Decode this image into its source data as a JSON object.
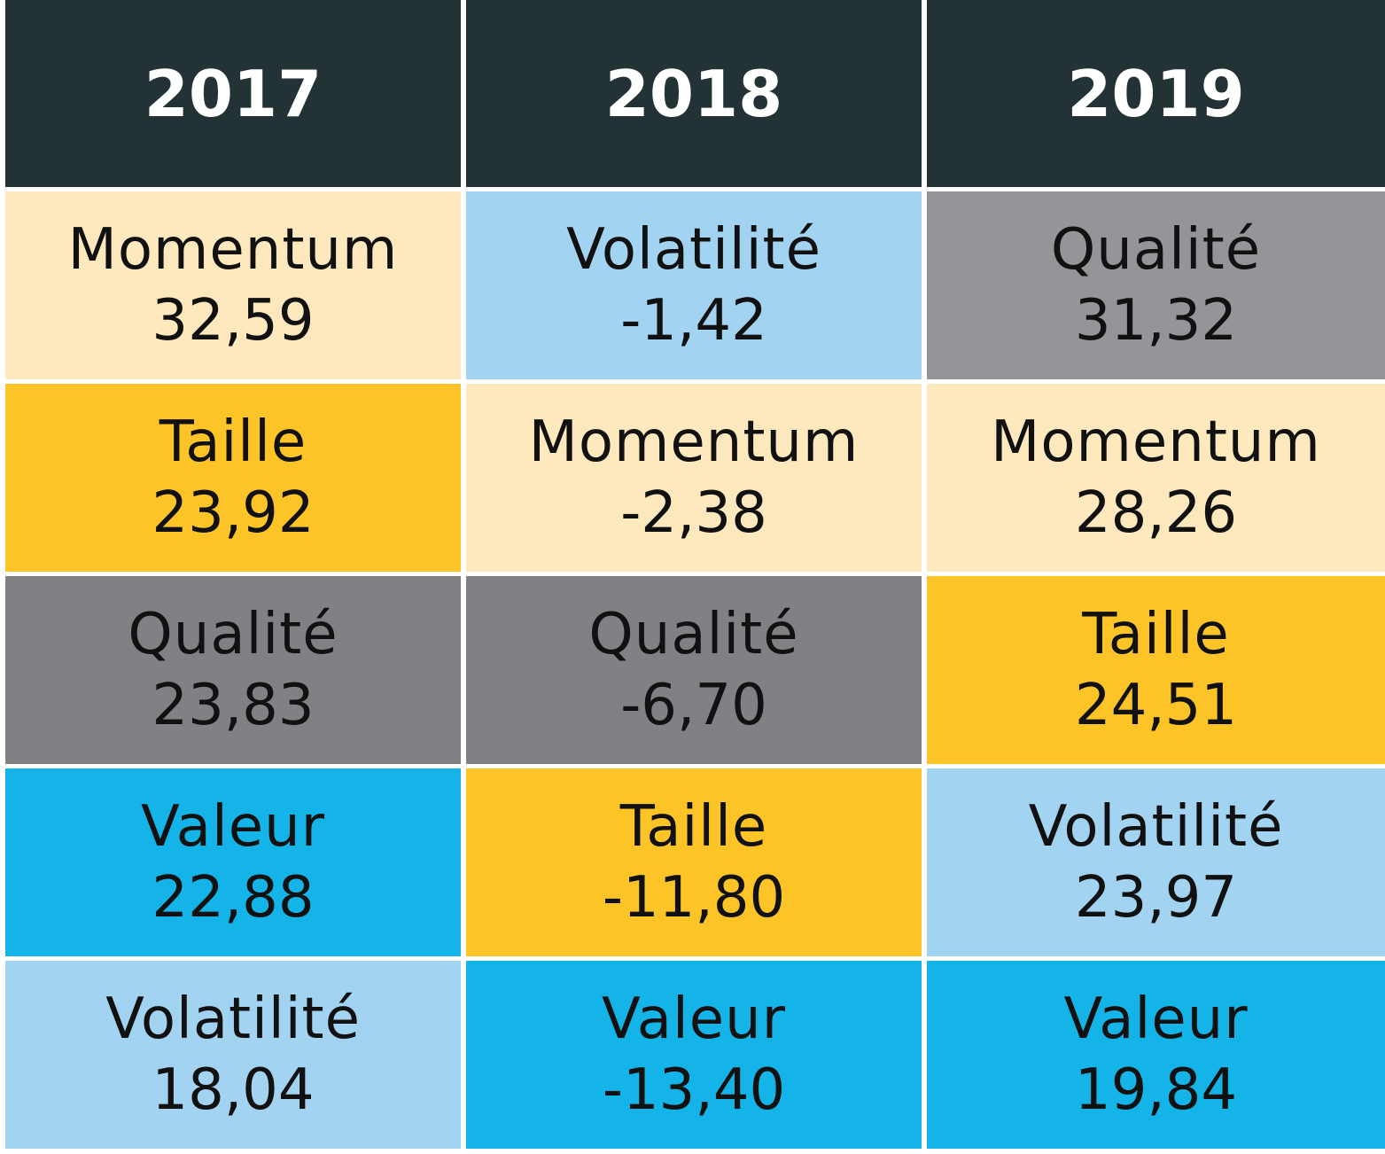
{
  "chart_data": {
    "type": "table",
    "columns": [
      "2017",
      "2018",
      "2019"
    ],
    "rows": [
      [
        {
          "factor": "Momentum",
          "value": "32,59"
        },
        {
          "factor": "Volatilité",
          "value": "-1,42"
        },
        {
          "factor": "Qualité",
          "value": "31,32"
        }
      ],
      [
        {
          "factor": "Taille",
          "value": "23,92"
        },
        {
          "factor": "Momentum",
          "value": "-2,38"
        },
        {
          "factor": "Momentum",
          "value": "28,26"
        }
      ],
      [
        {
          "factor": "Qualité",
          "value": "23,83"
        },
        {
          "factor": "Qualité",
          "value": "-6,70"
        },
        {
          "factor": "Taille",
          "value": "24,51"
        }
      ],
      [
        {
          "factor": "Valeur",
          "value": "22,88"
        },
        {
          "factor": "Taille",
          "value": "-11,80"
        },
        {
          "factor": "Volatilité",
          "value": "23,97"
        }
      ],
      [
        {
          "factor": "Volatilité",
          "value": "18,04"
        },
        {
          "factor": "Valeur",
          "value": "-13,40"
        },
        {
          "factor": "Valeur",
          "value": "19,84"
        }
      ]
    ],
    "factor_colors": {
      "Momentum": "#FEE9BF",
      "Volatilité": "#A2D4F2",
      "Qualité": "#808184",
      "Taille": "#FDC428",
      "Valeur": "#14B4E8"
    },
    "header_color": "#223235"
  }
}
